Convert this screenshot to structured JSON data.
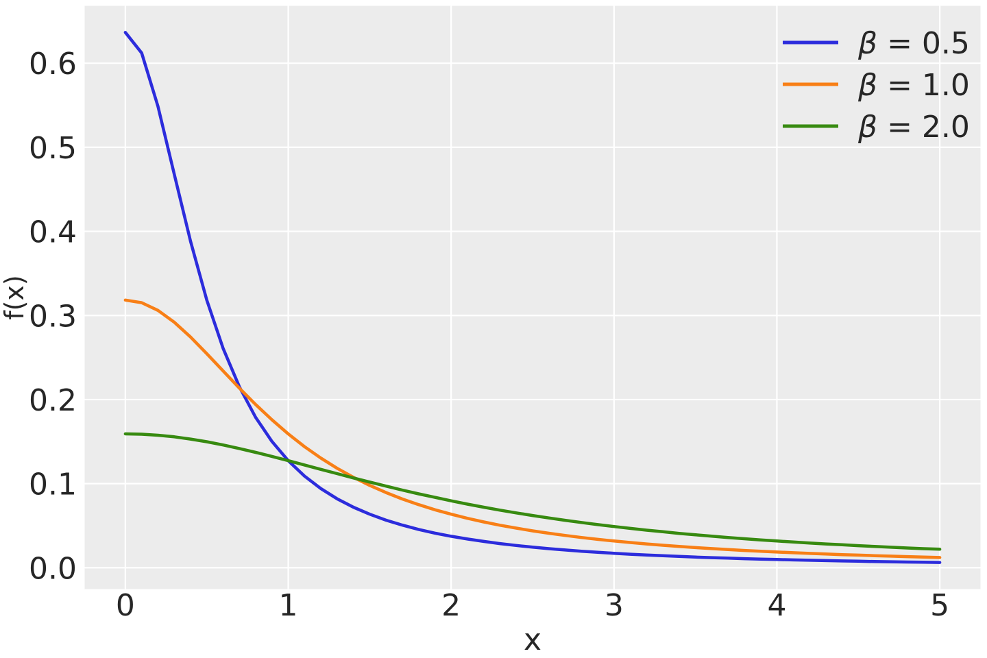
{
  "figure": {
    "background": "#ffffff",
    "plot_background": "#ececec",
    "grid_color": "#ffffff",
    "text_color": "#262626"
  },
  "chart_data": {
    "type": "line",
    "title": "",
    "xlabel": "x",
    "ylabel": "f(x)",
    "xlim": [
      -0.25,
      5.25
    ],
    "ylim": [
      -0.0254,
      0.6682
    ],
    "grid": true,
    "legend_position": "upper right",
    "x_ticks": [
      0,
      1,
      2,
      3,
      4,
      5
    ],
    "x_tick_labels": [
      "0",
      "1",
      "2",
      "3",
      "4",
      "5"
    ],
    "y_ticks": [
      0.0,
      0.1,
      0.2,
      0.3,
      0.4,
      0.5,
      0.6
    ],
    "y_tick_labels": [
      "0.0",
      "0.1",
      "0.2",
      "0.3",
      "0.4",
      "0.5",
      "0.6"
    ],
    "x": [
      0.0,
      0.1,
      0.2,
      0.3,
      0.4,
      0.5,
      0.6,
      0.7,
      0.8,
      0.9,
      1.0,
      1.1,
      1.2,
      1.3,
      1.4,
      1.5,
      1.6,
      1.7,
      1.8,
      1.9,
      2.0,
      2.1,
      2.2,
      2.3,
      2.4,
      2.5,
      2.6,
      2.7,
      2.8,
      2.9,
      3.0,
      3.1,
      3.2,
      3.3,
      3.4,
      3.5,
      3.6,
      3.7,
      3.8,
      3.9,
      4.0,
      4.1,
      4.2,
      4.3,
      4.4,
      4.5,
      4.6,
      4.7,
      4.8,
      4.9,
      5.0
    ],
    "series": [
      {
        "name": "β = 0.5",
        "color": "#2c2cdc",
        "values": [
          0.6366,
          0.6121,
          0.5488,
          0.4681,
          0.3882,
          0.3183,
          0.2609,
          0.2151,
          0.1788,
          0.1502,
          0.1273,
          0.109,
          0.0942,
          0.082,
          0.072,
          0.0637,
          0.0566,
          0.0507,
          0.0456,
          0.0412,
          0.0374,
          0.0342,
          0.0313,
          0.0287,
          0.0265,
          0.0245,
          0.0227,
          0.0211,
          0.0197,
          0.0184,
          0.0172,
          0.0161,
          0.0152,
          0.0143,
          0.0135,
          0.0127,
          0.012,
          0.0114,
          0.0108,
          0.0103,
          0.0098,
          0.0093,
          0.0089,
          0.0085,
          0.0081,
          0.0078,
          0.0074,
          0.0071,
          0.0068,
          0.0066,
          0.0063
        ]
      },
      {
        "name": "β = 1.0",
        "color": "#f87f16",
        "values": [
          0.3183,
          0.3152,
          0.3061,
          0.292,
          0.2744,
          0.2546,
          0.234,
          0.2136,
          0.1941,
          0.1759,
          0.1592,
          0.144,
          0.1304,
          0.1183,
          0.1075,
          0.0979,
          0.0894,
          0.0818,
          0.0751,
          0.069,
          0.0637,
          0.0588,
          0.0545,
          0.0506,
          0.0471,
          0.0439,
          0.041,
          0.0384,
          0.036,
          0.0338,
          0.0318,
          0.03,
          0.0283,
          0.0268,
          0.0253,
          0.024,
          0.0228,
          0.0217,
          0.0206,
          0.0196,
          0.0187,
          0.0179,
          0.0171,
          0.0163,
          0.0156,
          0.015,
          0.0144,
          0.0138,
          0.0132,
          0.0127,
          0.0122
        ]
      },
      {
        "name": "β = 2.0",
        "color": "#378a10",
        "values": [
          0.1592,
          0.1588,
          0.1576,
          0.1557,
          0.153,
          0.1498,
          0.146,
          0.1418,
          0.1372,
          0.1324,
          0.1273,
          0.1222,
          0.117,
          0.1119,
          0.1068,
          0.1019,
          0.0971,
          0.0924,
          0.0879,
          0.0837,
          0.0796,
          0.0757,
          0.072,
          0.0685,
          0.0652,
          0.0621,
          0.0592,
          0.0564,
          0.0538,
          0.0513,
          0.049,
          0.0468,
          0.0447,
          0.0428,
          0.0409,
          0.0392,
          0.0375,
          0.036,
          0.0345,
          0.0331,
          0.0318,
          0.0306,
          0.0294,
          0.0283,
          0.0273,
          0.0263,
          0.0253,
          0.0244,
          0.0235,
          0.0227,
          0.022
        ]
      }
    ]
  }
}
